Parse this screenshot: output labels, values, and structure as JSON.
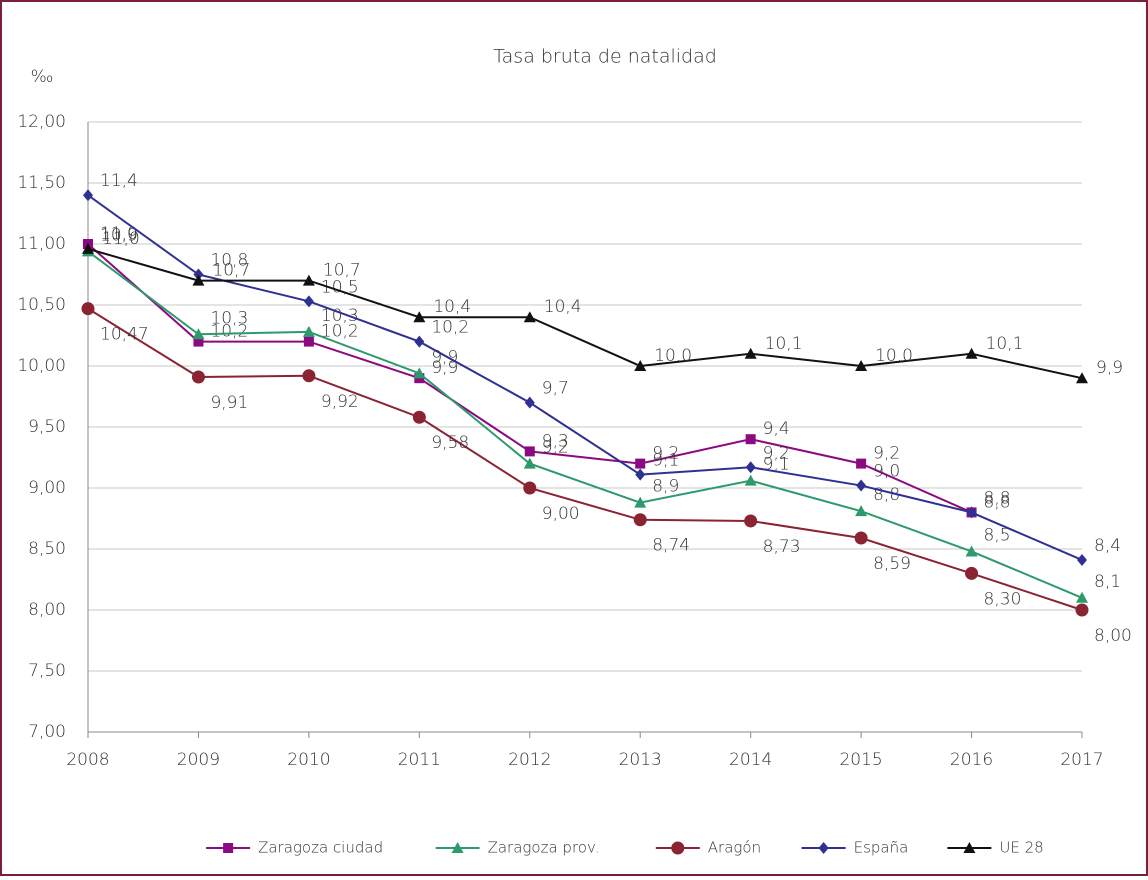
{
  "chart_data": {
    "type": "line",
    "title": "Tasa bruta de natalidad",
    "y_label": "‰",
    "x": [
      2008,
      2009,
      2010,
      2011,
      2012,
      2013,
      2014,
      2015,
      2016,
      2017
    ],
    "xlim": [
      2008,
      2017
    ],
    "xticks": [
      2008,
      2009,
      2010,
      2011,
      2012,
      2013,
      2014,
      2015,
      2016,
      2017
    ],
    "ylim": [
      7,
      12
    ],
    "yticks": [
      {
        "value": 7,
        "label": "7,00"
      },
      {
        "value": 7.5,
        "label": "7,50"
      },
      {
        "value": 8,
        "label": "8,00"
      },
      {
        "value": 8.5,
        "label": "8,50"
      },
      {
        "value": 9,
        "label": "9,00"
      },
      {
        "value": 9.5,
        "label": "9,50"
      },
      {
        "value": 10,
        "label": "10,00"
      },
      {
        "value": 10.5,
        "label": "10,50"
      },
      {
        "value": 11,
        "label": "11,00"
      },
      {
        "value": 11.5,
        "label": "11,50"
      },
      {
        "value": 12,
        "label": "12,00"
      }
    ],
    "grid": true,
    "legend": "bottom",
    "series": [
      {
        "name": "Zaragoza ciudad",
        "color": "#8b0a82",
        "marker": "square",
        "values": [
          11.0,
          10.2,
          10.2,
          9.9,
          9.3,
          9.2,
          9.4,
          9.2,
          8.8,
          null
        ],
        "value_labels": [
          "11,0",
          "10,2",
          "10,2",
          "9,9",
          "9,3",
          "9,2",
          "9,4",
          "9,2",
          "8,8",
          null
        ]
      },
      {
        "name": "Zaragoza prov.",
        "color": "#2e9a6c",
        "marker": "triangle",
        "values": [
          10.94,
          10.26,
          10.28,
          9.94,
          9.2,
          8.88,
          9.06,
          8.81,
          8.48,
          8.1
        ],
        "value_labels": [
          "10,9",
          "10,3",
          "10,3",
          "9,9",
          "9,2",
          "8,9",
          "9,1",
          "8,8",
          "8,5",
          "8,1"
        ]
      },
      {
        "name": "Aragón",
        "color": "#8a2433",
        "marker": "circle",
        "values": [
          10.47,
          9.91,
          9.92,
          9.58,
          9.0,
          8.74,
          8.73,
          8.59,
          8.3,
          8.0
        ],
        "value_labels": [
          "10,47",
          "9,91",
          "9,92",
          "9,58",
          "9,00",
          "8,74",
          "8,73",
          "8,59",
          "8,30",
          "8,00"
        ]
      },
      {
        "name": "España",
        "color": "#2e3192",
        "marker": "diamond",
        "values": [
          11.4,
          10.75,
          10.53,
          10.2,
          9.7,
          9.11,
          9.17,
          9.02,
          8.8,
          8.41
        ],
        "value_labels": [
          "11,4",
          "10,8",
          "10,5",
          "10,2",
          "9,7",
          "9,1",
          "9,2",
          "9,0",
          "8,8",
          "8,4"
        ]
      },
      {
        "name": "UE 28",
        "color": "#111111",
        "marker": "triangle",
        "values": [
          10.96,
          10.7,
          10.7,
          10.4,
          10.4,
          10.0,
          10.1,
          10.0,
          10.1,
          9.9
        ],
        "value_labels": [
          "11,0",
          "10,7",
          "10,7",
          "10,4",
          "10,4",
          "10,0",
          "10,1",
          "10,0",
          "10,1",
          "9,9"
        ]
      }
    ]
  }
}
